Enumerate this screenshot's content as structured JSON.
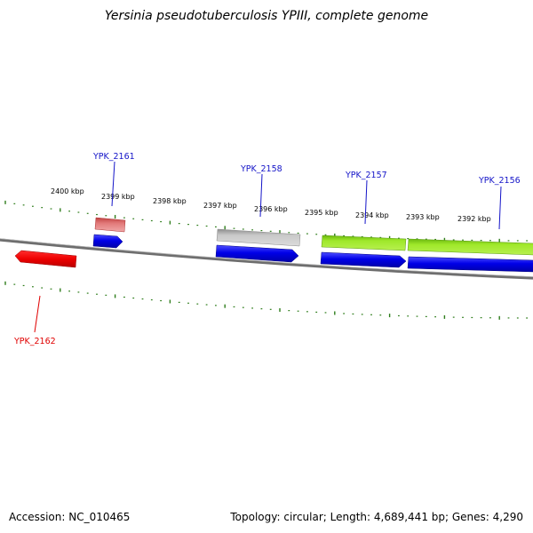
{
  "title": "Yersinia pseudotuberculosis YPIII, complete genome",
  "footer": {
    "accession": "Accession: NC_010465",
    "topology": "Topology: circular; Length: 4,689,441 bp; Genes: 4,290"
  },
  "colors": {
    "backbone": "#7a7a7a",
    "tick": "#2e7d1b",
    "forward_label": "#1414c8",
    "reverse_label": "#e00000",
    "cds": "#1010e0",
    "gene_gray": "#bdbdbd",
    "gene_green": "#8fd61c",
    "gene_pink": "#e07070",
    "gene_red": "#ee1111"
  },
  "kbp_labels": [
    "2400 kbp",
    "2399 kbp",
    "2398 kbp",
    "2397 kbp",
    "2396 kbp",
    "2395 kbp",
    "2394 kbp",
    "2393 kbp",
    "2392 kbp"
  ],
  "gene_labels": [
    {
      "text": "YPK_2161",
      "strand": "forward"
    },
    {
      "text": "YPK_2158",
      "strand": "forward"
    },
    {
      "text": "YPK_2157",
      "strand": "forward"
    },
    {
      "text": "YPK_2156",
      "strand": "forward"
    },
    {
      "text": "YPK_2162",
      "strand": "reverse"
    }
  ]
}
